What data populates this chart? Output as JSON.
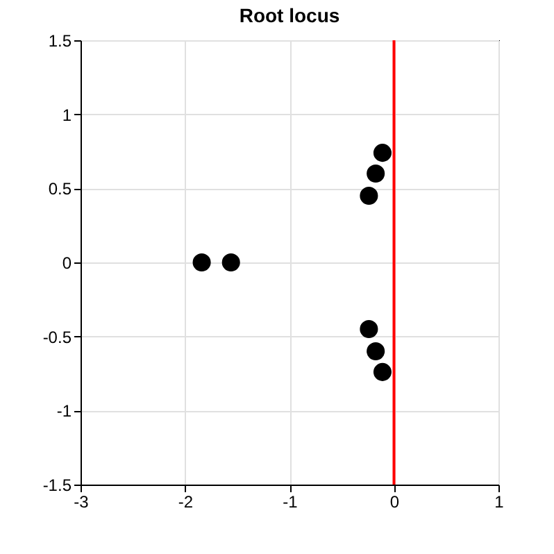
{
  "chart_data": {
    "type": "scatter",
    "title": "Root locus",
    "series": [
      {
        "color": "#000000",
        "x": [
          -1.84,
          -1.56
        ],
        "values": [
          0,
          0
        ]
      },
      {
        "color": "#000000",
        "x": [
          -0.24,
          -0.175,
          -0.11
        ],
        "values": [
          0.45,
          0.6,
          0.74
        ]
      },
      {
        "color": "#000000",
        "x": [
          -0.24,
          -0.175,
          -0.11
        ],
        "values": [
          -0.45,
          -0.6,
          -0.74
        ]
      }
    ],
    "xlim": [
      -3,
      1
    ],
    "xticks": [
      -3,
      -2,
      -1,
      0,
      1
    ],
    "ylim": [
      -1.5,
      1.5
    ],
    "yticks": [
      -1.5,
      -1,
      -0.5,
      0,
      0.5,
      1,
      1.5
    ],
    "ref_lines": [
      {
        "axis": "x",
        "value": 0,
        "color": "#ff0000"
      }
    ],
    "grid": true,
    "marker": "circle"
  }
}
